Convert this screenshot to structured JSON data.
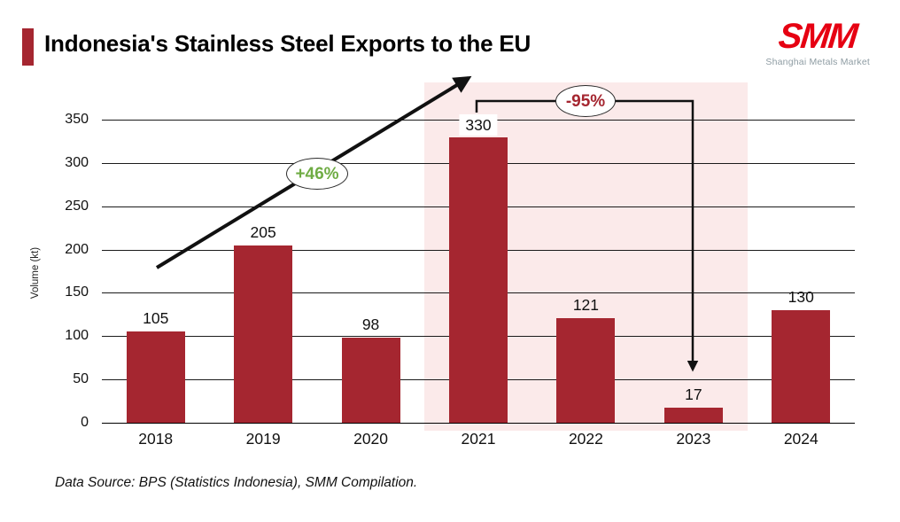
{
  "header": {
    "title": "Indonesia's Stainless Steel Exports to the EU",
    "logo_text": "SMM",
    "logo_subtitle": "Shanghai Metals Market"
  },
  "chart_data": {
    "type": "bar",
    "title": "Indonesia's Stainless Steel Exports to the EU",
    "categories": [
      "2018",
      "2019",
      "2020",
      "2021",
      "2022",
      "2023",
      "2024"
    ],
    "values": [
      105,
      205,
      98,
      330,
      121,
      17,
      130
    ],
    "xlabel": "",
    "ylabel": "Volume (kt)",
    "ylim": [
      0,
      350
    ],
    "yticks": [
      0,
      50,
      100,
      150,
      200,
      250,
      300,
      350
    ],
    "grid": true,
    "legend": false,
    "bar_color": "#A52630",
    "highlight_region": {
      "from_category": "2021",
      "to_category": "2023",
      "color": "#FBEAEA"
    },
    "boxed_value_label": "2021",
    "annotations": [
      {
        "id": "growth",
        "label": "+46%",
        "color": "#6FAC44",
        "shape": "white-oval",
        "arrow": "diagonal-up from 2018 toward 2021 peak"
      },
      {
        "id": "drop",
        "label": "-95%",
        "color": "#A52630",
        "shape": "white-oval",
        "arrow": "elbow down from 2021 top to 2023 bar"
      }
    ]
  },
  "footer": {
    "source": "Data Source: BPS (Statistics Indonesia), SMM Compilation."
  },
  "colors": {
    "bar": "#A52630",
    "highlight": "#FBEAEA",
    "accent_marker": "#A52630",
    "logo_red": "#E60012",
    "logo_gray": "#8E9CA3",
    "growth_green": "#6FAC44",
    "drop_red": "#A52630",
    "gridline": "#1b1b1b"
  }
}
